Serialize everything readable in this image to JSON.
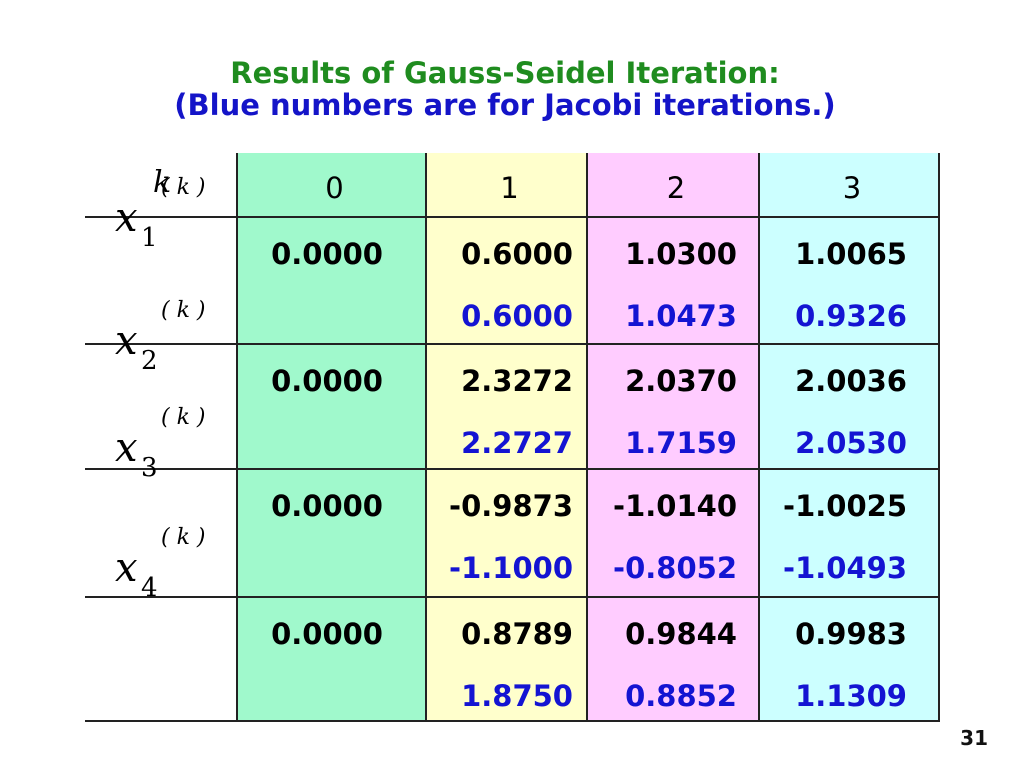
{
  "title": {
    "line1": "Results of Gauss-Seidel Iteration:",
    "line2": "(Blue numbers are for Jacobi iterations.)"
  },
  "table": {
    "header": [
      "k",
      "0",
      "1",
      "2",
      "3"
    ],
    "rows": [
      {
        "label": {
          "symbol": "x",
          "subscript": "1",
          "superscript": "( k )"
        },
        "gauss_seidel": [
          "0.0000",
          "0.6000",
          "1.0300",
          "1.0065"
        ],
        "jacobi": [
          "0.6000",
          "1.0473",
          "0.9326"
        ]
      },
      {
        "label": {
          "symbol": "x",
          "subscript": "2",
          "superscript": "( k )"
        },
        "gauss_seidel": [
          "0.0000",
          "2.3272",
          "2.0370",
          "2.0036"
        ],
        "jacobi": [
          "2.2727",
          "1.7159",
          "2.0530"
        ]
      },
      {
        "label": {
          "symbol": "x",
          "subscript": "3",
          "superscript": "( k )"
        },
        "gauss_seidel": [
          "0.0000",
          "-0.9873",
          "-1.0140",
          "-1.0025"
        ],
        "jacobi": [
          "-1.1000",
          "-0.8052",
          "-1.0493"
        ]
      },
      {
        "label": {
          "symbol": "x",
          "subscript": "4",
          "superscript": "( k )"
        },
        "gauss_seidel": [
          "0.0000",
          "0.8789",
          "0.9844",
          "0.9983"
        ],
        "jacobi": [
          "1.8750",
          "0.8852",
          "1.1309"
        ]
      }
    ]
  },
  "page_number": "31"
}
